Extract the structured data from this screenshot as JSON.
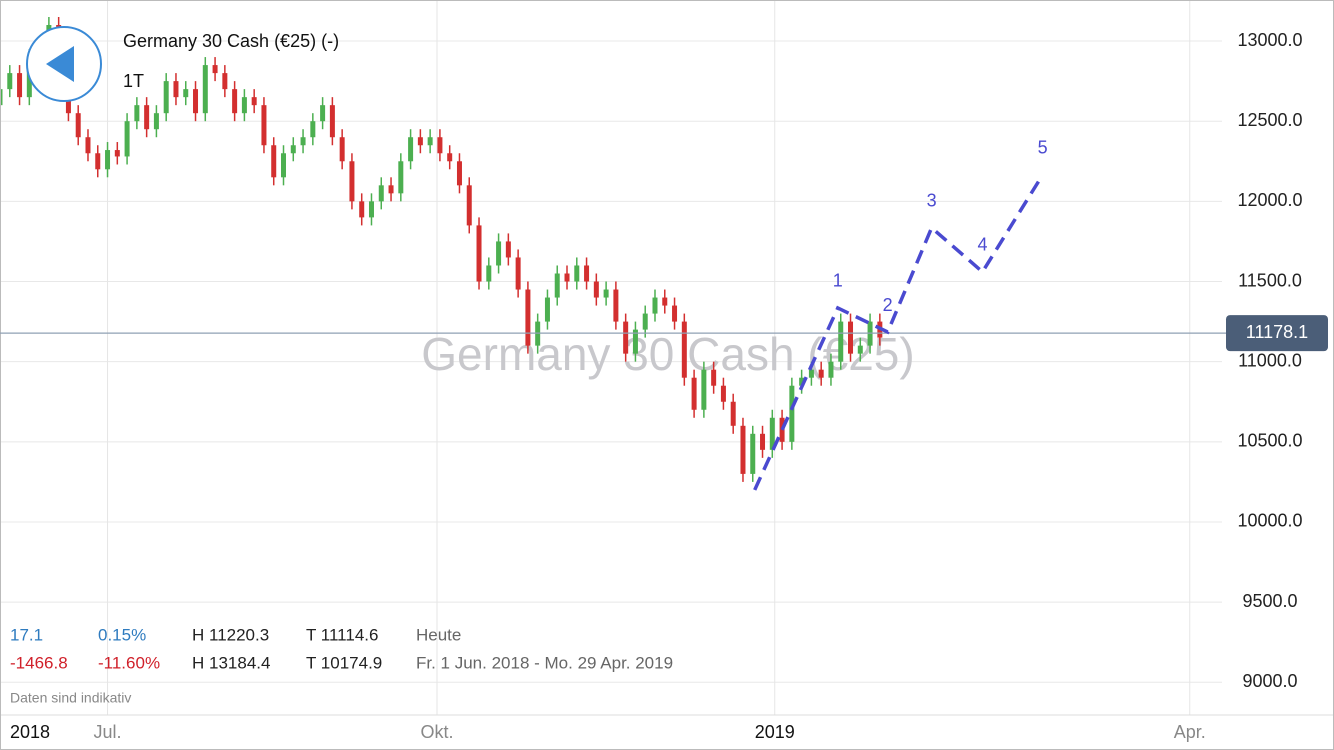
{
  "chart_data": {
    "type": "candlestick",
    "title": "Germany 30 Cash (€25) (-)",
    "interval": "1T",
    "watermark": "Germany 30 Cash (€25)",
    "xlim": [
      0,
      250
    ],
    "ylim": [
      8796,
      13256
    ],
    "yticks": [
      {
        "value": 9000,
        "label": "9000.0"
      },
      {
        "value": 9500,
        "label": "9500.0"
      },
      {
        "value": 10000,
        "label": "10000.0"
      },
      {
        "value": 10500,
        "label": "10500.0"
      },
      {
        "value": 11000,
        "label": "11000.0"
      },
      {
        "value": 11500,
        "label": "11500.0"
      },
      {
        "value": 12000,
        "label": "12000.0"
      },
      {
        "value": 12500,
        "label": "12500.0"
      },
      {
        "value": 13000,
        "label": "13000.0"
      }
    ],
    "xticks": [
      {
        "value": 0,
        "label": "2018"
      },
      {
        "value": 22,
        "label": "Jul."
      },
      {
        "value": 89.4,
        "label": "Okt."
      },
      {
        "value": 158.5,
        "label": "2019"
      },
      {
        "value": 243.4,
        "label": "Apr."
      }
    ],
    "grid": true,
    "up_color": "#4caf50",
    "down_color": "#d32f2f",
    "last_price": 11178.1,
    "x": [
      0,
      2,
      4,
      6,
      8,
      10,
      12,
      14,
      16,
      18,
      20,
      22,
      24,
      26,
      28,
      30,
      32,
      34,
      36,
      38,
      40,
      42,
      44,
      46,
      48,
      50,
      52,
      54,
      56,
      58,
      60,
      62,
      64,
      66,
      68,
      70,
      72,
      74,
      76,
      78,
      80,
      82,
      84,
      86,
      88,
      90,
      92,
      94,
      96,
      98,
      100,
      102,
      104,
      106,
      108,
      110,
      112,
      114,
      116,
      118,
      120,
      122,
      124,
      126,
      128,
      130,
      132,
      134,
      136,
      138,
      140,
      142,
      144,
      146,
      148,
      150,
      152,
      154,
      156,
      158,
      160,
      162,
      164,
      166,
      168,
      170,
      172,
      174,
      176,
      178,
      180
    ],
    "open": [
      12600,
      12700,
      12800,
      12650,
      12900,
      12850,
      13100,
      12750,
      12550,
      12400,
      12300,
      12200,
      12320,
      12280,
      12500,
      12600,
      12450,
      12550,
      12750,
      12650,
      12700,
      12550,
      12850,
      12800,
      12700,
      12550,
      12650,
      12600,
      12350,
      12150,
      12300,
      12350,
      12400,
      12500,
      12600,
      12400,
      12250,
      12000,
      11900,
      12000,
      12100,
      12050,
      12250,
      12400,
      12350,
      12400,
      12300,
      12250,
      12100,
      11850,
      11500,
      11600,
      11750,
      11650,
      11450,
      11100,
      11250,
      11400,
      11550,
      11500,
      11600,
      11500,
      11400,
      11450,
      11250,
      11050,
      11200,
      11300,
      11400,
      11350,
      11250,
      10900,
      10700,
      10950,
      10850,
      10750,
      10600,
      10300,
      10550,
      10450,
      10650,
      10500,
      10850,
      10900,
      10950,
      10900,
      11000,
      11250,
      11050,
      11100,
      11250
    ],
    "high": [
      12750,
      12850,
      12850,
      12950,
      12950,
      13150,
      13150,
      12800,
      12600,
      12450,
      12350,
      12370,
      12370,
      12550,
      12650,
      12650,
      12600,
      12800,
      12800,
      12750,
      12750,
      12900,
      12900,
      12850,
      12750,
      12700,
      12700,
      12650,
      12400,
      12350,
      12400,
      12450,
      12550,
      12650,
      12650,
      12450,
      12300,
      12050,
      12050,
      12150,
      12150,
      12300,
      12450,
      12450,
      12450,
      12450,
      12350,
      12300,
      12150,
      11900,
      11650,
      11800,
      11800,
      11700,
      11500,
      11300,
      11450,
      11600,
      11600,
      11650,
      11650,
      11550,
      11500,
      11500,
      11300,
      11250,
      11350,
      11450,
      11450,
      11400,
      11300,
      10950,
      11000,
      11000,
      10900,
      10800,
      10650,
      10600,
      10600,
      10700,
      10700,
      10900,
      10950,
      11000,
      11000,
      11050,
      11300,
      11300,
      11150,
      11300,
      11300
    ],
    "low": [
      12550,
      12650,
      12600,
      12600,
      12800,
      12800,
      12700,
      12500,
      12350,
      12250,
      12150,
      12150,
      12230,
      12230,
      12450,
      12400,
      12400,
      12500,
      12600,
      12600,
      12500,
      12500,
      12750,
      12650,
      12500,
      12500,
      12550,
      12300,
      12100,
      12100,
      12250,
      12300,
      12350,
      12450,
      12350,
      12200,
      11950,
      11850,
      11850,
      11950,
      12000,
      12000,
      12200,
      12300,
      12300,
      12250,
      12200,
      12050,
      11800,
      11450,
      11450,
      11550,
      11600,
      11400,
      11050,
      11050,
      11200,
      11350,
      11450,
      11450,
      11450,
      11350,
      11350,
      11200,
      11000,
      11000,
      11150,
      11250,
      11300,
      11200,
      10850,
      10650,
      10650,
      10800,
      10700,
      10550,
      10250,
      10250,
      10400,
      10400,
      10450,
      10450,
      10800,
      10850,
      10850,
      10850,
      10950,
      11000,
      11000,
      11050,
      11100
    ],
    "close": [
      12700,
      12800,
      12650,
      12900,
      12850,
      13100,
      12750,
      12550,
      12400,
      12300,
      12200,
      12320,
      12280,
      12500,
      12600,
      12450,
      12550,
      12750,
      12650,
      12700,
      12550,
      12850,
      12800,
      12700,
      12550,
      12650,
      12600,
      12350,
      12150,
      12300,
      12350,
      12400,
      12500,
      12600,
      12400,
      12250,
      12000,
      11900,
      12000,
      12100,
      12050,
      12250,
      12400,
      12350,
      12400,
      12300,
      12250,
      12100,
      11850,
      11500,
      11600,
      11750,
      11650,
      11450,
      11100,
      11250,
      11400,
      11550,
      11500,
      11600,
      11500,
      11400,
      11450,
      11250,
      11050,
      11200,
      11300,
      11400,
      11350,
      11250,
      10900,
      10700,
      10950,
      10850,
      10750,
      10600,
      10300,
      10550,
      10450,
      10650,
      10500,
      10850,
      10900,
      10950,
      10900,
      11000,
      11250,
      11050,
      11100,
      11250,
      11150
    ],
    "waves": {
      "color": "#4a4ad0",
      "x": [
        154.4,
        171.4,
        181.6,
        190.6,
        201,
        213.3
      ],
      "y": [
        10200,
        11335,
        11185,
        11835,
        11560,
        12165
      ],
      "labels": [
        "1",
        "2",
        "3",
        "4",
        "5"
      ]
    },
    "stats": [
      [
        "17.1",
        "0.15%",
        "H 11220.3",
        "T 11114.6",
        "Heute"
      ],
      [
        "-1466.8",
        "-11.60%",
        "H 13184.4",
        "T 10174.9",
        "Fr. 1 Jun. 2018 - Mo. 29 Apr. 2019"
      ]
    ],
    "note": "Daten sind indikativ"
  }
}
